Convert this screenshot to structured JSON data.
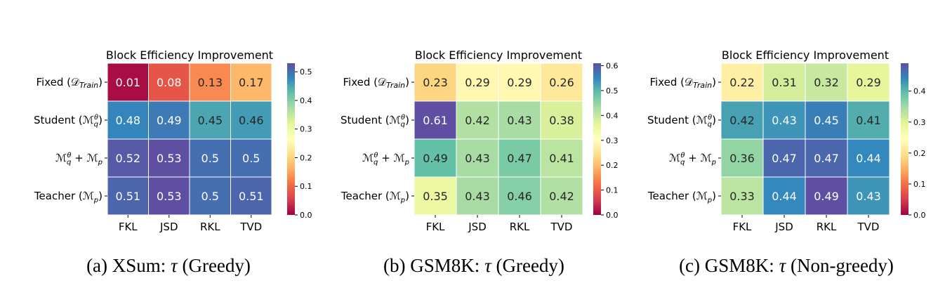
{
  "chart_data": [
    {
      "type": "heatmap",
      "title": "Block Efficiency Improvement",
      "caption_prefix": "(a) XSum: ",
      "caption_symbol": "τ",
      "caption_suffix": " (Greedy)",
      "rows": [
        "Fixed (𝒟Train)",
        "Student (ℳqθ)",
        "ℳqθ + ℳp",
        "Teacher (ℳp)"
      ],
      "columns": [
        "FKL",
        "JSD",
        "RKL",
        "TVD"
      ],
      "values": [
        [
          0.01,
          0.08,
          0.13,
          0.17
        ],
        [
          0.48,
          0.49,
          0.45,
          0.46
        ],
        [
          0.52,
          0.53,
          0.5,
          0.5
        ],
        [
          0.51,
          0.53,
          0.5,
          0.51
        ]
      ],
      "colorbar": {
        "range": [
          0,
          0.53
        ],
        "ticks": [
          "0.0",
          "0.1",
          "0.2",
          "0.3",
          "0.4",
          "0.5"
        ],
        "colormap": "Spectral"
      }
    },
    {
      "type": "heatmap",
      "title": "Block Efficiency Improvement",
      "caption_prefix": "(b) GSM8K: ",
      "caption_symbol": "τ",
      "caption_suffix": " (Greedy)",
      "rows": [
        "Fixed (𝒟Train)",
        "Student (ℳqθ)",
        "ℳqθ + ℳp",
        "Teacher (ℳp)"
      ],
      "columns": [
        "FKL",
        "JSD",
        "RKL",
        "TVD"
      ],
      "values": [
        [
          0.23,
          0.29,
          0.29,
          0.26
        ],
        [
          0.61,
          0.42,
          0.43,
          0.38
        ],
        [
          0.49,
          0.43,
          0.47,
          0.41
        ],
        [
          0.35,
          0.43,
          0.46,
          0.42
        ]
      ],
      "colorbar": {
        "range": [
          0,
          0.61
        ],
        "ticks": [
          "0.0",
          "0.1",
          "0.2",
          "0.3",
          "0.4",
          "0.5",
          "0.6"
        ],
        "colormap": "Spectral"
      }
    },
    {
      "type": "heatmap",
      "title": "Block Efficiency Improvement",
      "caption_prefix": "(c) GSM8K: ",
      "caption_symbol": "τ",
      "caption_suffix": " (Non-greedy)",
      "rows": [
        "Fixed (𝒟Train)",
        "Student (ℳqθ)",
        "ℳqθ + ℳp",
        "Teacher (ℳp)"
      ],
      "columns": [
        "FKL",
        "JSD",
        "RKL",
        "TVD"
      ],
      "values": [
        [
          0.22,
          0.31,
          0.32,
          0.29
        ],
        [
          0.42,
          0.43,
          0.45,
          0.41
        ],
        [
          0.36,
          0.47,
          0.47,
          0.44
        ],
        [
          0.33,
          0.44,
          0.49,
          0.43
        ]
      ],
      "colorbar": {
        "range": [
          0,
          0.49
        ],
        "ticks": [
          "0.0",
          "0.1",
          "0.2",
          "0.3",
          "0.4"
        ],
        "colormap": "Spectral"
      }
    }
  ]
}
